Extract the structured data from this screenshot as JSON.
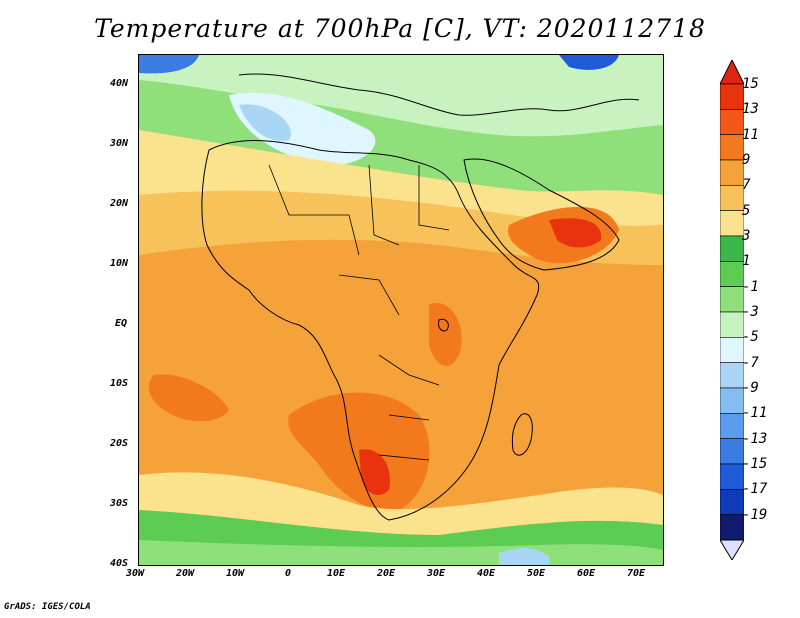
{
  "title": "Temperature at 700hPa [C], VT: 2020112718",
  "map": {
    "lon_ticks": [
      "30W",
      "20W",
      "10W",
      "0",
      "10E",
      "20E",
      "30E",
      "40E",
      "50E",
      "60E",
      "70E"
    ],
    "lat_ticks": [
      "40N",
      "30N",
      "20N",
      "10N",
      "EQ",
      "10S",
      "20S",
      "30S",
      "40S"
    ]
  },
  "colorbar": {
    "labels": [
      "15",
      "13",
      "11",
      "9",
      "7",
      "5",
      "3",
      "1",
      "-1",
      "-3",
      "-5",
      "-7",
      "-9",
      "-11",
      "-13",
      "-15",
      "-17",
      "-19"
    ],
    "colors": [
      "#e8330e",
      "#f2581c",
      "#f27a1c",
      "#f5a23a",
      "#f8c25a",
      "#fbe38e",
      "#3cb84a",
      "#5ccd52",
      "#8fe07a",
      "#c8f3c0",
      "#dff6ff",
      "#aad6f5",
      "#86bdf0",
      "#5c9cec",
      "#3a7de2",
      "#1f5bd6",
      "#0f3bb8",
      "#101a6e"
    ]
  },
  "credit": "GrADS: IGES/COLA"
}
